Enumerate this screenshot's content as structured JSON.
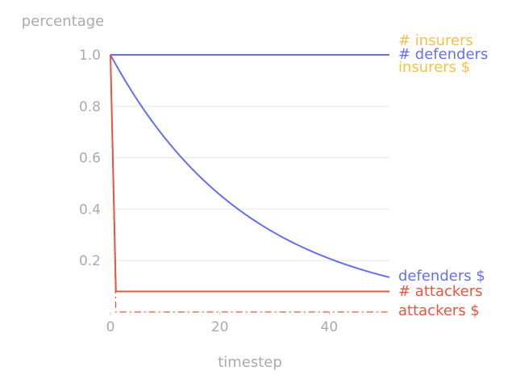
{
  "chart_data": {
    "type": "line",
    "title": "",
    "xlabel": "timestep",
    "ylabel": "percentage",
    "xlim": [
      0,
      51
    ],
    "ylim": [
      0,
      1
    ],
    "x_ticks": [
      "0",
      "20",
      "40"
    ],
    "y_ticks": [
      "0.2",
      "0.4",
      "0.6",
      "0.8",
      "1.0"
    ],
    "grid": "horizontal",
    "legend": "inline labels at right end of lines",
    "series": [
      {
        "name": "# insurers",
        "color": "#f5c342",
        "style": "solid",
        "width": 0.8,
        "curve": "constant",
        "y0": 1.0
      },
      {
        "name": "insurers $",
        "color": "#f5c342",
        "style": "solid",
        "width": 0.8,
        "curve": "constant",
        "y0": 1.0
      },
      {
        "name": "# defenders",
        "color": "#6470f0",
        "style": "solid",
        "width": 2,
        "curve": "constant",
        "y0": 1.0
      },
      {
        "name": "defenders $",
        "color": "#6470f0",
        "style": "solid",
        "width": 2,
        "curve": "exp_decay",
        "y0": 1.0,
        "y_end": 0.135
      },
      {
        "name": "# attackers",
        "color": "#e8553e",
        "style": "solid",
        "width": 2,
        "curve": "drop",
        "y0": 1.0,
        "drop_x": 1,
        "y_end": 0.08
      },
      {
        "name": "attackers $",
        "color": "#e8553e",
        "style": "dashdot",
        "width": 1.2,
        "curve": "drop",
        "y0": 1.0,
        "drop_x": 1,
        "y_end": 0.0
      }
    ]
  }
}
